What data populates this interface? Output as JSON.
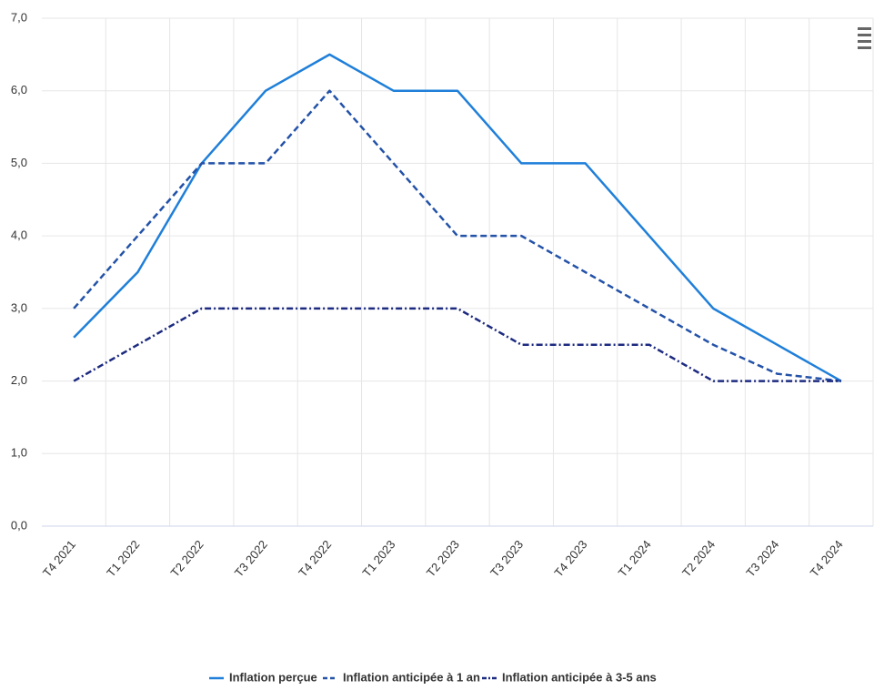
{
  "chart_data": {
    "type": "line",
    "categories": [
      "T4 2021",
      "T1 2022",
      "T2 2022",
      "T3 2022",
      "T4 2022",
      "T1 2023",
      "T2 2023",
      "T3 2023",
      "T4 2023",
      "T1 2024",
      "T2 2024",
      "T3 2024",
      "T4 2024"
    ],
    "series": [
      {
        "name": "Inflation perçue",
        "color": "#1f7fd9",
        "dash": "solid",
        "values": [
          2.6,
          3.5,
          5.0,
          6.0,
          6.5,
          6.0,
          6.0,
          5.0,
          5.0,
          4.0,
          3.0,
          2.5,
          2.0
        ]
      },
      {
        "name": "Inflation anticipée à 1 an",
        "color": "#2352a8",
        "dash": "dash",
        "values": [
          3.0,
          4.0,
          5.0,
          5.0,
          6.0,
          5.0,
          4.0,
          4.0,
          3.5,
          3.0,
          2.5,
          2.1,
          2.0
        ]
      },
      {
        "name": "Inflation anticipée à 3-5 ans",
        "color": "#1c2a80",
        "dash": "dashdot",
        "values": [
          2.0,
          2.5,
          3.0,
          3.0,
          3.0,
          3.0,
          3.0,
          2.5,
          2.5,
          2.5,
          2.0,
          2.0,
          2.0
        ]
      }
    ],
    "ylim": [
      0,
      7
    ],
    "yticks": [
      {
        "value": 0,
        "label": "0,0"
      },
      {
        "value": 1,
        "label": "1,0"
      },
      {
        "value": 2,
        "label": "2,0"
      },
      {
        "value": 3,
        "label": "3,0"
      },
      {
        "value": 4,
        "label": "4,0"
      },
      {
        "value": 5,
        "label": "5,0"
      },
      {
        "value": 6,
        "label": "6,0"
      },
      {
        "value": 7,
        "label": "7,0"
      }
    ],
    "grid": true,
    "legend": "bottom"
  }
}
